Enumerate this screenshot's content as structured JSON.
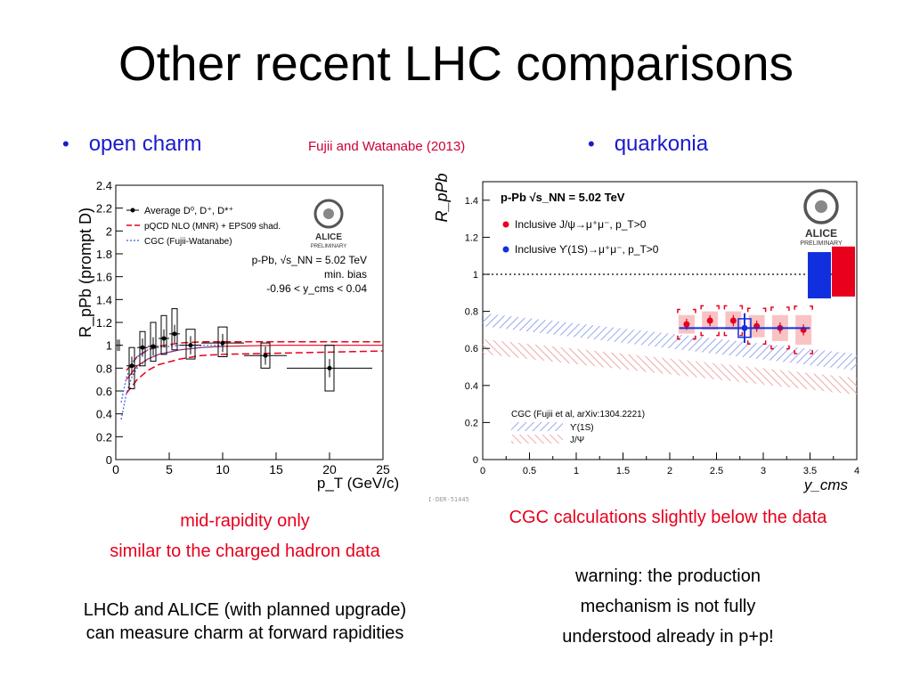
{
  "slide": {
    "title": "Other recent LHC comparisons",
    "left_bullet": "open charm",
    "reference": "Fujii and Watanabe (2013)",
    "right_bullet": "quarkonia",
    "left_note_line1": "mid-rapidity only",
    "left_note_line2": "similar to the charged hadron data",
    "left_note_line3": "LHCb and ALICE (with planned upgrade)",
    "left_note_line4": "can measure charm at forward rapidities",
    "right_note": "CGC calculations slightly below the data",
    "warning_line1": "warning: the production",
    "warning_line2": "mechanism is not fully",
    "warning_line3": "understood already in p+p!"
  },
  "colors": {
    "bullet_blue": "#1a1acc",
    "note_red": "#e8001c",
    "reference_red": "#cc0033",
    "jpsi_red": "#e8001c",
    "upsilon_blue": "#1030e0",
    "cgc_band_blue": "#a8b4f0",
    "cgc_band_red": "#f4b4b4"
  },
  "chart_data": [
    {
      "type": "scatter",
      "id": "open-charm",
      "ylabel": "R_pPb (prompt D)",
      "xlabel": "p_T (GeV/c)",
      "xlim": [
        0,
        25
      ],
      "ylim": [
        0,
        2.4
      ],
      "x_ticks": [
        "0",
        "5",
        "10",
        "15",
        "20",
        "25"
      ],
      "y_ticks": [
        "0",
        "0.2",
        "0.4",
        "0.6",
        "0.8",
        "1",
        "1.2",
        "1.4",
        "1.6",
        "1.8",
        "2",
        "2.2",
        "2.4"
      ],
      "legend": [
        "Average D⁰, D⁺, D*⁺",
        "pQCD NLO (MNR) + EPS09 shad.",
        "CGC (Fujii-Watanabe)"
      ],
      "legend_position": "top-left",
      "annotation_lines": [
        "p-Pb, √s_NN = 5.02 TeV",
        "min. bias",
        "-0.96 < y_cms < 0.04"
      ],
      "logo_text": "ALICE",
      "logo_subtext": "PRELIMINARY",
      "footer_id": "ALI-DER-57378",
      "points": [
        {
          "x": 1.5,
          "y": 0.82,
          "xerr": 0.5,
          "sys_low": 0.62,
          "sys_high": 0.98
        },
        {
          "x": 2.5,
          "y": 0.98,
          "xerr": 0.5,
          "sys_low": 0.82,
          "sys_high": 1.12
        },
        {
          "x": 3.5,
          "y": 0.99,
          "xerr": 0.5,
          "sys_low": 0.86,
          "sys_high": 1.2
        },
        {
          "x": 4.5,
          "y": 1.06,
          "xerr": 0.5,
          "sys_low": 0.92,
          "sys_high": 1.26
        },
        {
          "x": 5.5,
          "y": 1.1,
          "xerr": 0.5,
          "sys_low": 0.96,
          "sys_high": 1.32
        },
        {
          "x": 7,
          "y": 1.0,
          "xerr": 1,
          "sys_low": 0.88,
          "sys_high": 1.14
        },
        {
          "x": 10,
          "y": 1.02,
          "xerr": 2,
          "sys_low": 0.9,
          "sys_high": 1.16
        },
        {
          "x": 14,
          "y": 0.91,
          "xerr": 2,
          "sys_low": 0.8,
          "sys_high": 1.02
        },
        {
          "x": 20,
          "y": 0.8,
          "xerr": 4,
          "sys_low": 0.6,
          "sys_high": 1.0
        }
      ],
      "pqcd_upper": {
        "x": [
          1,
          2,
          3,
          4,
          6,
          8,
          10,
          15,
          20,
          25
        ],
        "y": [
          0.78,
          0.9,
          0.96,
          0.99,
          1.02,
          1.03,
          1.03,
          1.03,
          1.03,
          1.03
        ]
      },
      "pqcd_lower": {
        "x": [
          1,
          2,
          3,
          4,
          6,
          8,
          10,
          15,
          20,
          25
        ],
        "y": [
          0.58,
          0.7,
          0.78,
          0.83,
          0.88,
          0.91,
          0.92,
          0.93,
          0.94,
          0.95
        ]
      },
      "pqcd_central": {
        "x": [
          1,
          2,
          3,
          4,
          6,
          8,
          10,
          15,
          20,
          25
        ],
        "y": [
          0.7,
          0.82,
          0.88,
          0.92,
          0.96,
          0.98,
          0.99,
          1.0,
          1.0,
          1.0
        ]
      },
      "cgc_upper": {
        "x": [
          0.5,
          1,
          1.5,
          2,
          3,
          4,
          6,
          8,
          10
        ],
        "y": [
          0.5,
          0.72,
          0.84,
          0.9,
          0.96,
          0.98,
          1.0,
          1.0,
          1.0
        ]
      },
      "cgc_lower": {
        "x": [
          0.5,
          1,
          1.5,
          2,
          3,
          4,
          6,
          8,
          10
        ],
        "y": [
          0.35,
          0.58,
          0.72,
          0.8,
          0.88,
          0.92,
          0.96,
          0.98,
          0.99
        ]
      }
    },
    {
      "type": "scatter",
      "id": "quarkonia",
      "ylabel": "R_pPb",
      "xlabel": "y_cms",
      "xlim": [
        0,
        4
      ],
      "ylim": [
        0,
        1.5
      ],
      "x_ticks": [
        "0",
        "0.5",
        "1",
        "1.5",
        "2",
        "2.5",
        "3",
        "3.5",
        "4"
      ],
      "y_ticks": [
        "0",
        "0.2",
        "0.4",
        "0.6",
        "0.8",
        "1",
        "1.2",
        "1.4"
      ],
      "system_label": "p-Pb √s_NN = 5.02 TeV",
      "legend": [
        "Inclusive J/ψ→μ⁺μ⁻, p_T>0",
        "Inclusive ϒ(1S)→μ⁺μ⁻, p_T>0"
      ],
      "legend_position": "top-left",
      "logo_text": "ALICE",
      "logo_subtext": "PRELIMINARY",
      "footer_id": "ALI-DER-51445",
      "cgc_legend_title": "CGC (Fujii et al, arXiv:1304.2221)",
      "cgc_legend": [
        "ϒ(1S)",
        "J/Ψ"
      ],
      "jpsi_points": [
        {
          "x": 2.18,
          "y": 0.73,
          "sys": 0.05
        },
        {
          "x": 2.43,
          "y": 0.75,
          "sys": 0.05
        },
        {
          "x": 2.68,
          "y": 0.75,
          "sys": 0.05
        },
        {
          "x": 2.93,
          "y": 0.72,
          "sys": 0.06
        },
        {
          "x": 3.18,
          "y": 0.71,
          "sys": 0.07
        },
        {
          "x": 3.43,
          "y": 0.7,
          "sys": 0.08
        }
      ],
      "upsilon_point": {
        "x": 2.8,
        "y": 0.71,
        "xerr": 0.7,
        "stat": 0.08,
        "sys": 0.05
      },
      "global_unc_upsilon": [
        0.87,
        1.12
      ],
      "global_unc_jpsi": [
        0.88,
        1.15
      ],
      "cgc_upsilon_band": {
        "x": [
          0,
          4
        ],
        "upper": [
          0.79,
          0.57
        ],
        "lower": [
          0.72,
          0.48
        ]
      },
      "cgc_jpsi_band": {
        "x": [
          0,
          4
        ],
        "upper": [
          0.65,
          0.44
        ],
        "lower": [
          0.57,
          0.35
        ]
      }
    }
  ]
}
